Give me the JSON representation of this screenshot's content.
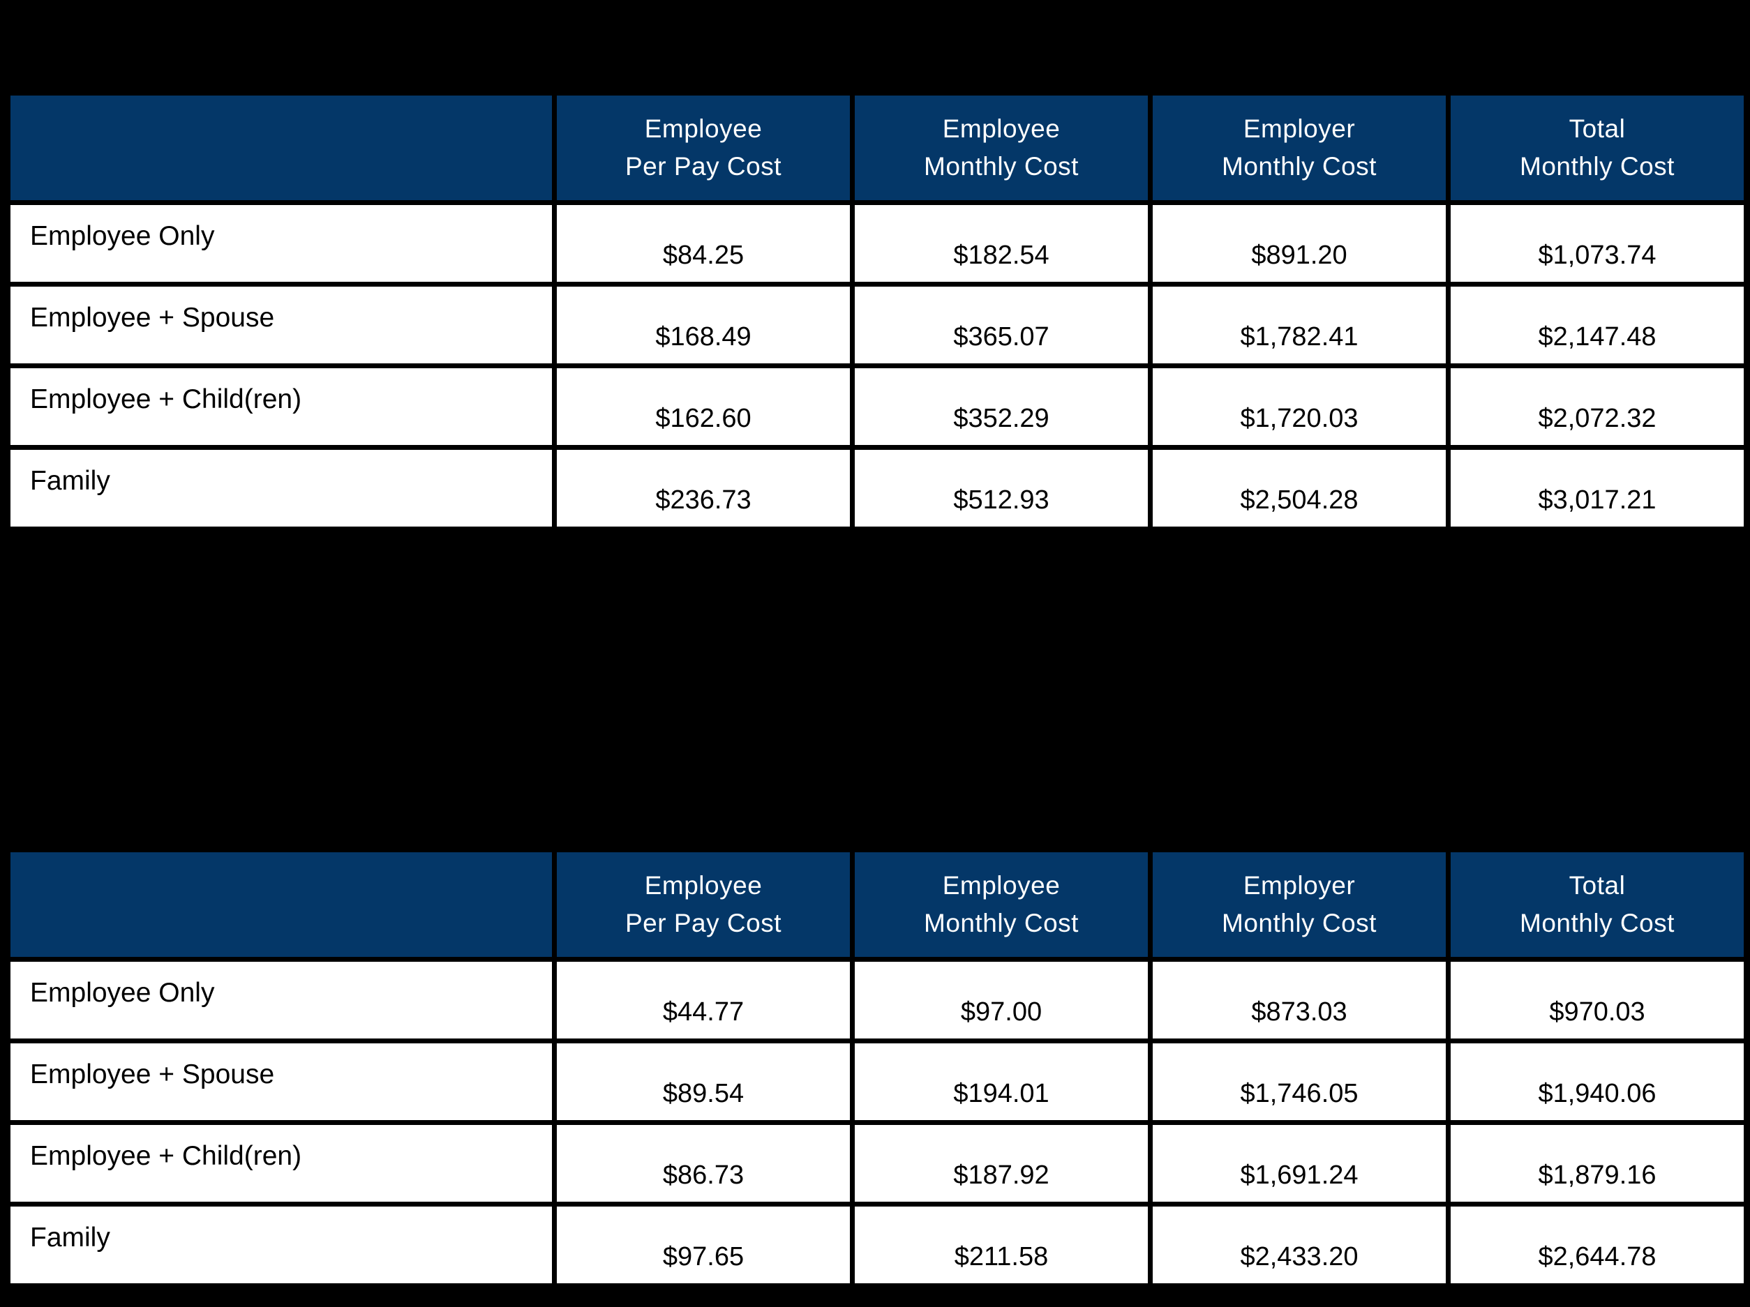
{
  "colors": {
    "page_background": "#000000",
    "header_background": "#043768",
    "header_text": "#ffffff",
    "cell_background": "#ffffff",
    "cell_text": "#000000",
    "grid_border": "#000000"
  },
  "tables": [
    {
      "name": "benefits-cost-table-1",
      "columns": [
        "Employee\nPer Pay Cost",
        "Employee\nMonthly Cost",
        "Employer\nMonthly Cost",
        "Total\nMonthly Cost"
      ],
      "rows": [
        {
          "label": "Employee Only",
          "values": [
            "$84.25",
            "$182.54",
            "$891.20",
            "$1,073.74"
          ]
        },
        {
          "label": "Employee + Spouse",
          "values": [
            "$168.49",
            "$365.07",
            "$1,782.41",
            "$2,147.48"
          ]
        },
        {
          "label": "Employee + Child(ren)",
          "values": [
            "$162.60",
            "$352.29",
            "$1,720.03",
            "$2,072.32"
          ]
        },
        {
          "label": "Family",
          "values": [
            "$236.73",
            "$512.93",
            "$2,504.28",
            "$3,017.21"
          ]
        }
      ]
    },
    {
      "name": "benefits-cost-table-2",
      "columns": [
        "Employee\nPer Pay Cost",
        "Employee\nMonthly Cost",
        "Employer\nMonthly Cost",
        "Total\nMonthly Cost"
      ],
      "rows": [
        {
          "label": "Employee Only",
          "values": [
            "$44.77",
            "$97.00",
            "$873.03",
            "$970.03"
          ]
        },
        {
          "label": "Employee + Spouse",
          "values": [
            "$89.54",
            "$194.01",
            "$1,746.05",
            "$1,940.06"
          ]
        },
        {
          "label": "Employee + Child(ren)",
          "values": [
            "$86.73",
            "$187.92",
            "$1,691.24",
            "$1,879.16"
          ]
        },
        {
          "label": "Family",
          "values": [
            "$97.65",
            "$211.58",
            "$2,433.20",
            "$2,644.78"
          ]
        }
      ]
    }
  ]
}
